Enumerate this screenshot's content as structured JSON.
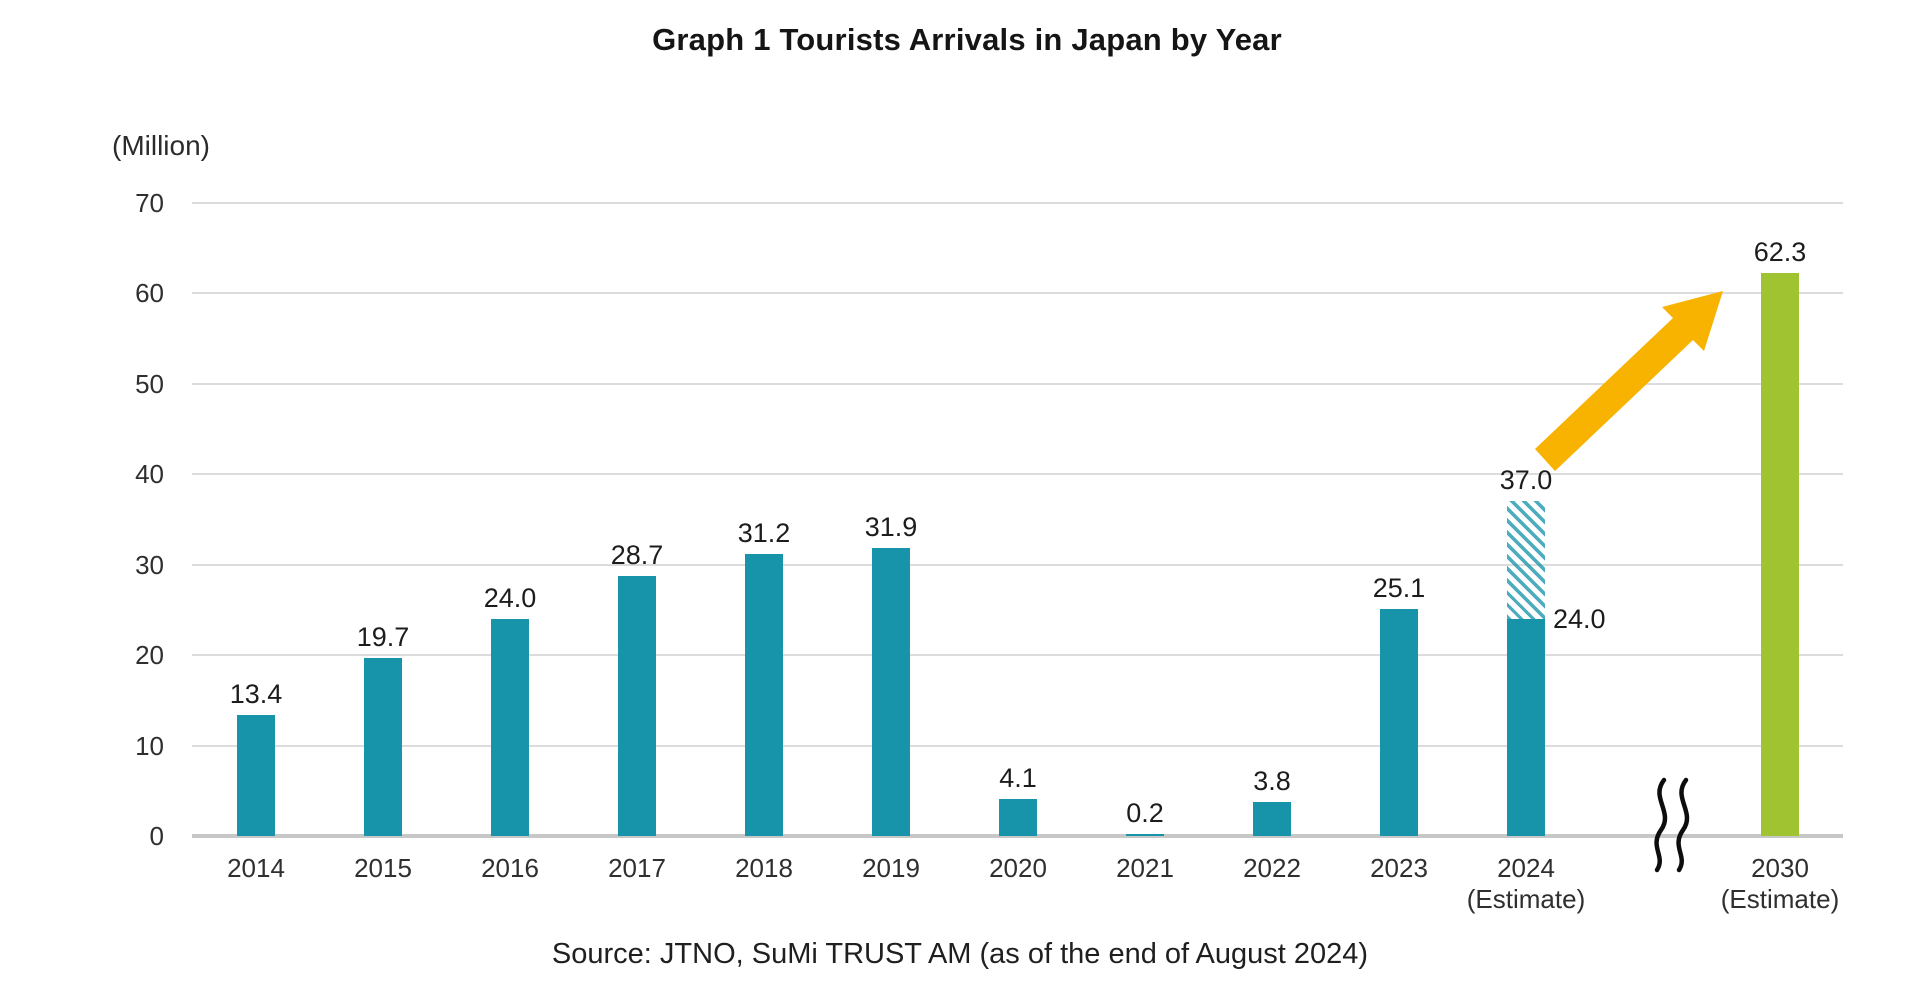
{
  "colors": {
    "bar_teal": "#1894aa",
    "bar_green": "#a0c331",
    "arrow_orange": "#f8b200",
    "gridline": "#dcdcdc",
    "axis_line": "#c7c7c7",
    "squiggle_black": "#0d0d0d"
  },
  "chart_data": {
    "type": "bar",
    "title": "Graph 1 Tourists Arrivals in Japan by Year",
    "unit_label": "(Million)",
    "ylabel": "(Million)",
    "xlabel": "",
    "ylim": [
      0,
      70
    ],
    "yticks": [
      0,
      10,
      20,
      30,
      40,
      50,
      60,
      70
    ],
    "grid": "horizontal",
    "legend": "none",
    "categories": [
      "2014",
      "2015",
      "2016",
      "2017",
      "2018",
      "2019",
      "2020",
      "2021",
      "2022",
      "2023",
      "2024 (Estimate)",
      "2030 (Estimate)"
    ],
    "series": [
      {
        "name": "Tourist arrivals (solid bars)",
        "values": [
          13.4,
          19.7,
          24.0,
          28.7,
          31.2,
          31.9,
          4.1,
          0.2,
          3.8,
          25.1,
          24.0,
          62.3
        ]
      },
      {
        "name": "2024 full-year estimate (hatched extension)",
        "values": [
          null,
          null,
          null,
          null,
          null,
          null,
          null,
          null,
          null,
          null,
          37.0,
          null
        ]
      }
    ],
    "bars": [
      {
        "category": "2014",
        "value": 13.4,
        "value_label": "13.4",
        "color_key": "teal"
      },
      {
        "category": "2015",
        "value": 19.7,
        "value_label": "19.7",
        "color_key": "teal"
      },
      {
        "category": "2016",
        "value": 24.0,
        "value_label": "24.0",
        "color_key": "teal"
      },
      {
        "category": "2017",
        "value": 28.7,
        "value_label": "28.7",
        "color_key": "teal"
      },
      {
        "category": "2018",
        "value": 31.2,
        "value_label": "31.2",
        "color_key": "teal"
      },
      {
        "category": "2019",
        "value": 31.9,
        "value_label": "31.9",
        "color_key": "teal"
      },
      {
        "category": "2020",
        "value": 4.1,
        "value_label": "4.1",
        "color_key": "teal"
      },
      {
        "category": "2021",
        "value": 0.2,
        "value_label": "0.2",
        "color_key": "teal"
      },
      {
        "category": "2022",
        "value": 3.8,
        "value_label": "3.8",
        "color_key": "teal"
      },
      {
        "category": "2023",
        "value": 25.1,
        "value_label": "25.1",
        "color_key": "teal"
      },
      {
        "category": "2024",
        "sublabel": "(Estimate)",
        "value": 24.0,
        "value_label": "24.0",
        "value_label_position": "right",
        "color_key": "teal",
        "estimate_value": 37.0,
        "estimate_label": "37.0",
        "estimate_style": "hatched"
      },
      {
        "category": "2030",
        "sublabel": "(Estimate)",
        "value": 62.3,
        "value_label": "62.3",
        "color_key": "green",
        "after_axis_break": true
      }
    ],
    "annotations": {
      "growth_arrow": {
        "shape": "arrow-up-right",
        "color": "#f8b200",
        "position": "pointing from above the 2024 bar toward the 2030 estimate bar"
      },
      "axis_break": {
        "shape": "double-squiggle",
        "position": "on the x-axis between 2024 and 2030"
      }
    },
    "source": "Source: JTNO, SuMi TRUST AM (as of the end of August 2024)"
  }
}
